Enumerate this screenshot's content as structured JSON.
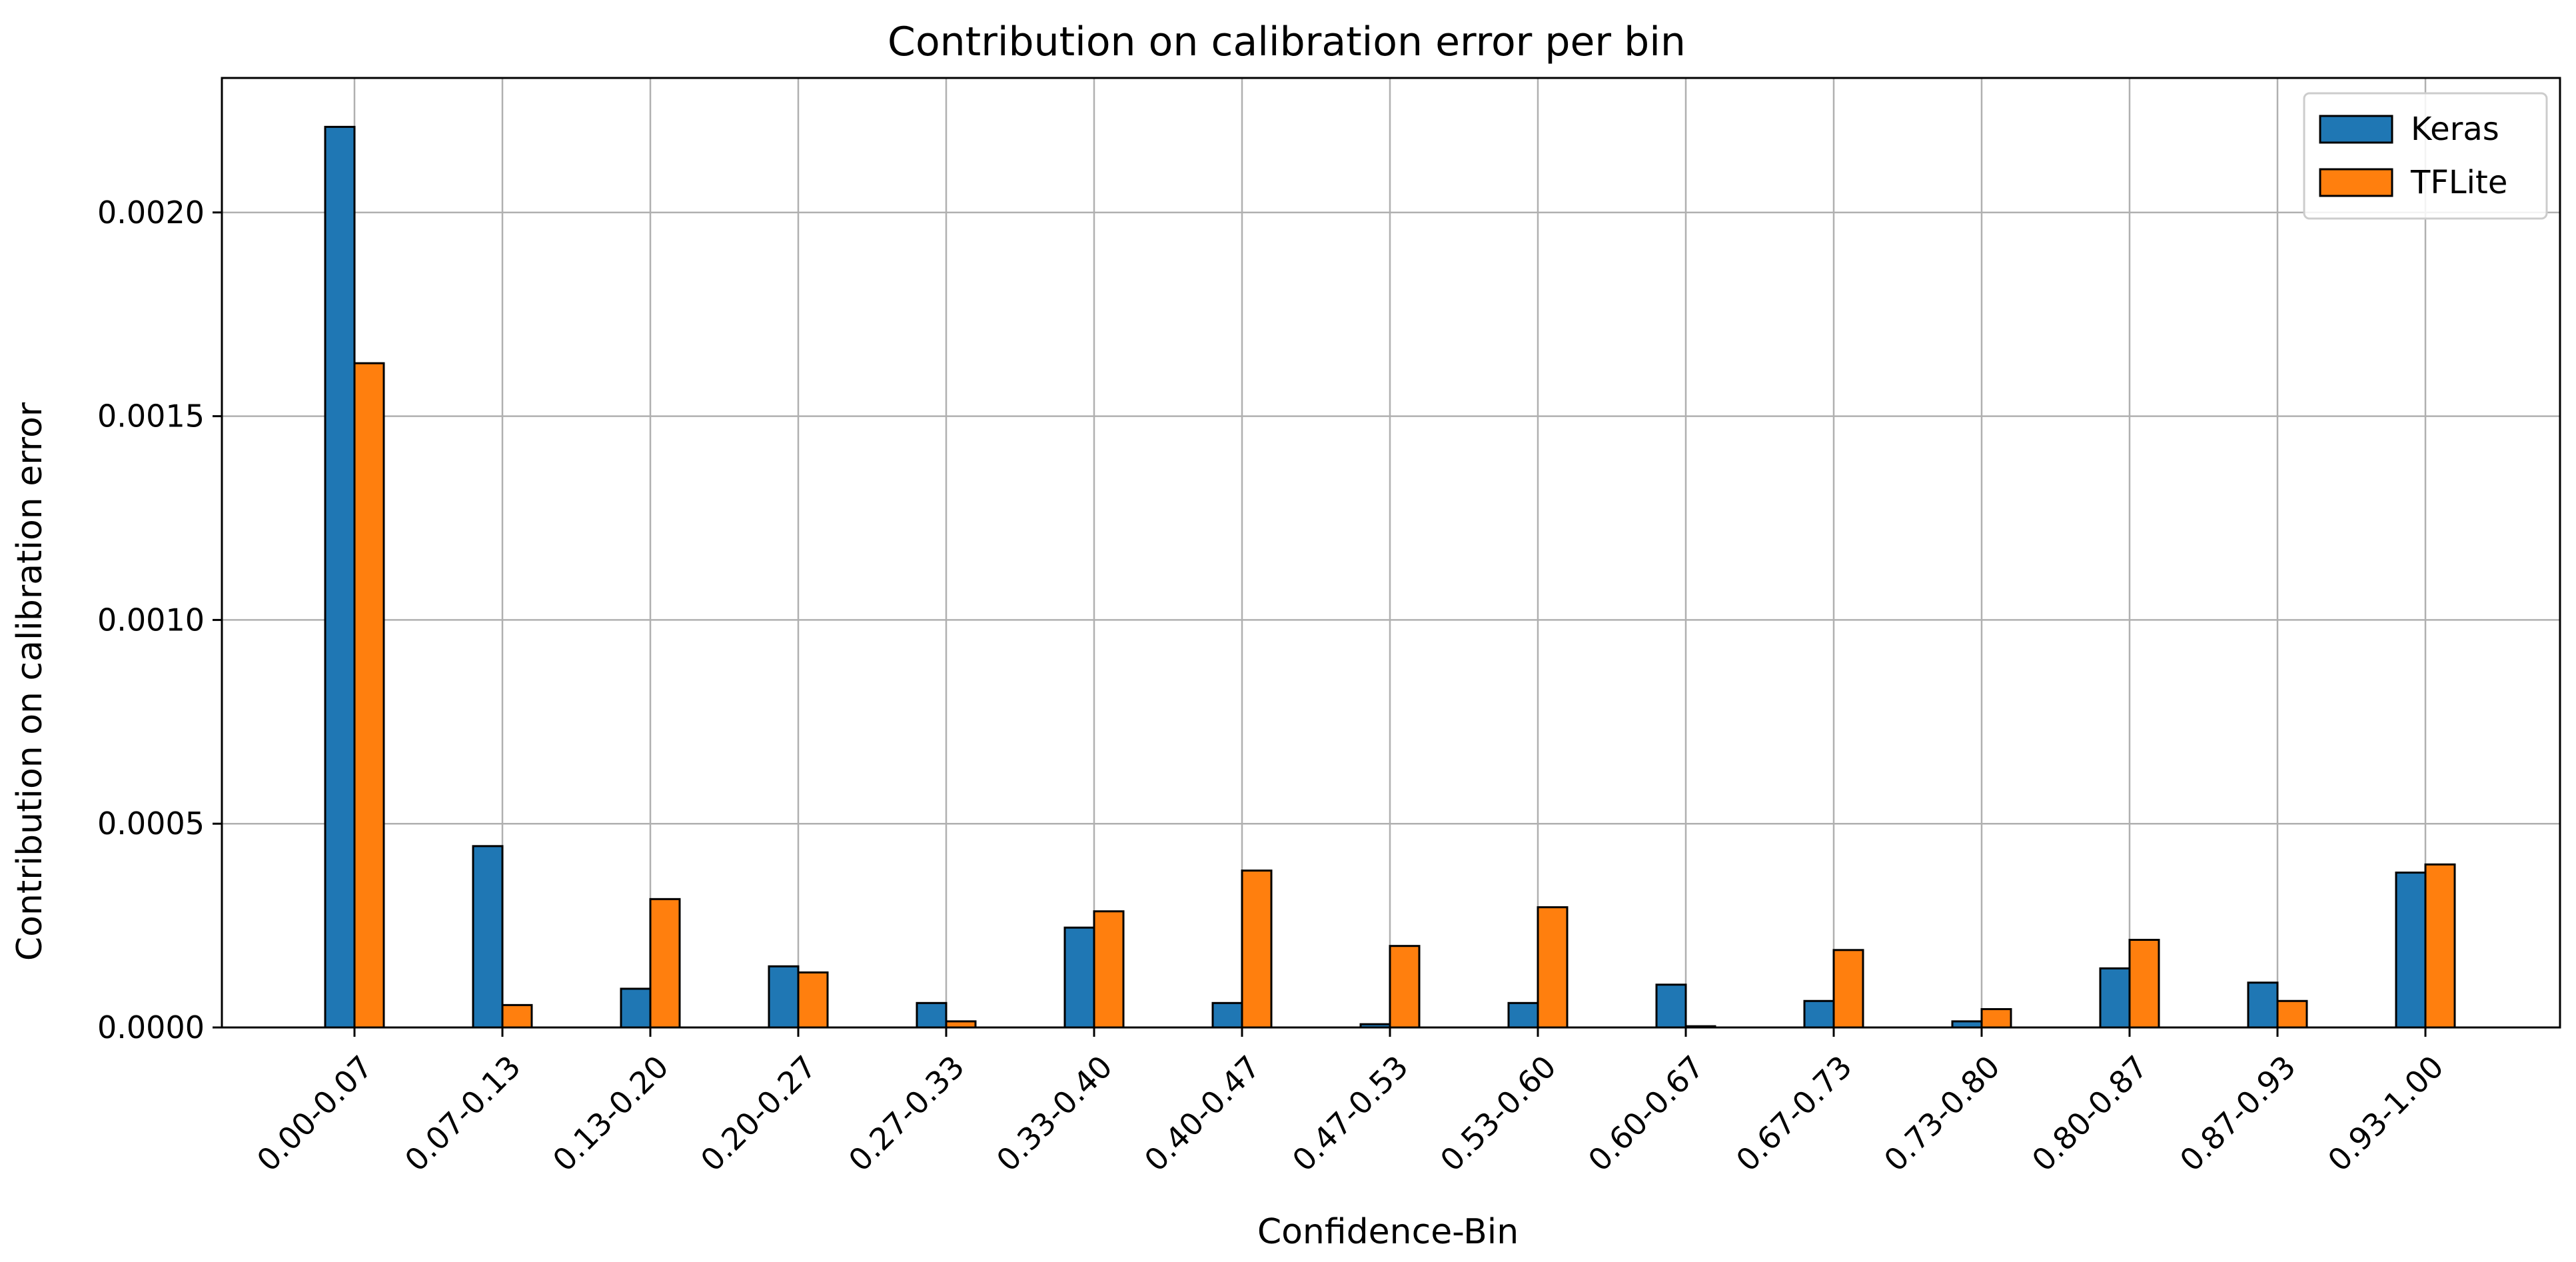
{
  "chart_data": {
    "type": "bar",
    "title": "Contribution on calibration error per bin",
    "xlabel": "Confidence-Bin",
    "ylabel": "Contribution on calibration error",
    "categories": [
      "0.00-0.07",
      "0.07-0.13",
      "0.13-0.20",
      "0.20-0.27",
      "0.27-0.33",
      "0.33-0.40",
      "0.40-0.47",
      "0.47-0.53",
      "0.53-0.60",
      "0.60-0.67",
      "0.67-0.73",
      "0.73-0.80",
      "0.80-0.87",
      "0.87-0.93",
      "0.93-1.00"
    ],
    "series": [
      {
        "name": "Keras",
        "color": "#1f77b4",
        "values": [
          0.00221,
          0.000445,
          9.5e-05,
          0.00015,
          6e-05,
          0.000245,
          6e-05,
          8e-06,
          6e-05,
          0.000105,
          6.5e-05,
          1.5e-05,
          0.000145,
          0.00011,
          0.00038
        ]
      },
      {
        "name": "TFLite",
        "color": "#ff7f0e",
        "values": [
          0.00163,
          5.5e-05,
          0.000315,
          0.000135,
          1.5e-05,
          0.000285,
          0.000385,
          0.0002,
          0.000295,
          3e-06,
          0.00019,
          4.5e-05,
          0.000215,
          6.5e-05,
          0.0004
        ]
      }
    ],
    "ylim": [
      0,
      0.00233
    ],
    "yticks": [
      "0.0000",
      "0.0005",
      "0.0010",
      "0.0015",
      "0.0020"
    ],
    "grid": true,
    "legend_position": "top-right"
  }
}
